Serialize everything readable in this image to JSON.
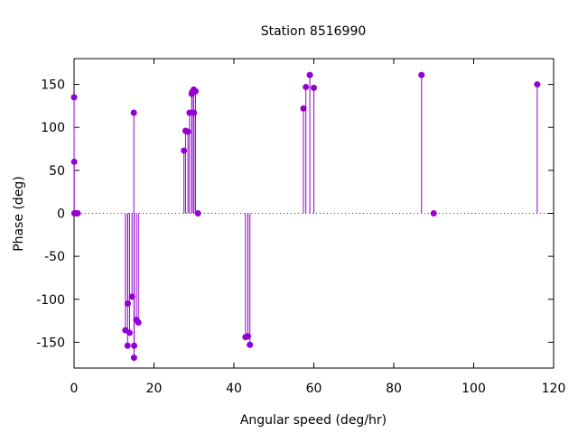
{
  "chart_data": {
    "type": "scatter",
    "style": "impulses with points",
    "title": "Station 8516990",
    "xlabel": "Angular speed (deg/hr)",
    "ylabel": "Phase (deg)",
    "xlim": [
      0,
      120
    ],
    "ylim": [
      -180,
      180
    ],
    "xticks": [
      0,
      20,
      40,
      60,
      80,
      100,
      120
    ],
    "yticks": [
      -150,
      -100,
      -50,
      0,
      50,
      100,
      150
    ],
    "grid": false,
    "legend": "none",
    "zero_line": "dotted",
    "color": "#9400d3",
    "points": [
      {
        "x": 0.0,
        "y": 135
      },
      {
        "x": 0.04,
        "y": 60
      },
      {
        "x": 0.08,
        "y": 0
      },
      {
        "x": 0.5,
        "y": 0
      },
      {
        "x": 0.9,
        "y": 0
      },
      {
        "x": 12.85,
        "y": -136
      },
      {
        "x": 13.4,
        "y": -154
      },
      {
        "x": 13.45,
        "y": -105
      },
      {
        "x": 13.9,
        "y": -139
      },
      {
        "x": 14.5,
        "y": -97
      },
      {
        "x": 14.96,
        "y": 117
      },
      {
        "x": 15.0,
        "y": -168
      },
      {
        "x": 15.04,
        "y": -154
      },
      {
        "x": 15.6,
        "y": -124
      },
      {
        "x": 16.1,
        "y": -127
      },
      {
        "x": 27.5,
        "y": 73
      },
      {
        "x": 27.9,
        "y": 96
      },
      {
        "x": 28.5,
        "y": 95
      },
      {
        "x": 28.9,
        "y": 117
      },
      {
        "x": 29.45,
        "y": 139
      },
      {
        "x": 29.55,
        "y": 141
      },
      {
        "x": 29.95,
        "y": 144
      },
      {
        "x": 30.0,
        "y": 117
      },
      {
        "x": 30.4,
        "y": 142
      },
      {
        "x": 31.0,
        "y": 0
      },
      {
        "x": 42.9,
        "y": -144
      },
      {
        "x": 43.5,
        "y": -143
      },
      {
        "x": 44.0,
        "y": -153
      },
      {
        "x": 57.4,
        "y": 122
      },
      {
        "x": 58.0,
        "y": 147
      },
      {
        "x": 59.0,
        "y": 161
      },
      {
        "x": 60.0,
        "y": 146
      },
      {
        "x": 86.95,
        "y": 161
      },
      {
        "x": 90.0,
        "y": 0
      },
      {
        "x": 115.9,
        "y": 150
      }
    ]
  }
}
